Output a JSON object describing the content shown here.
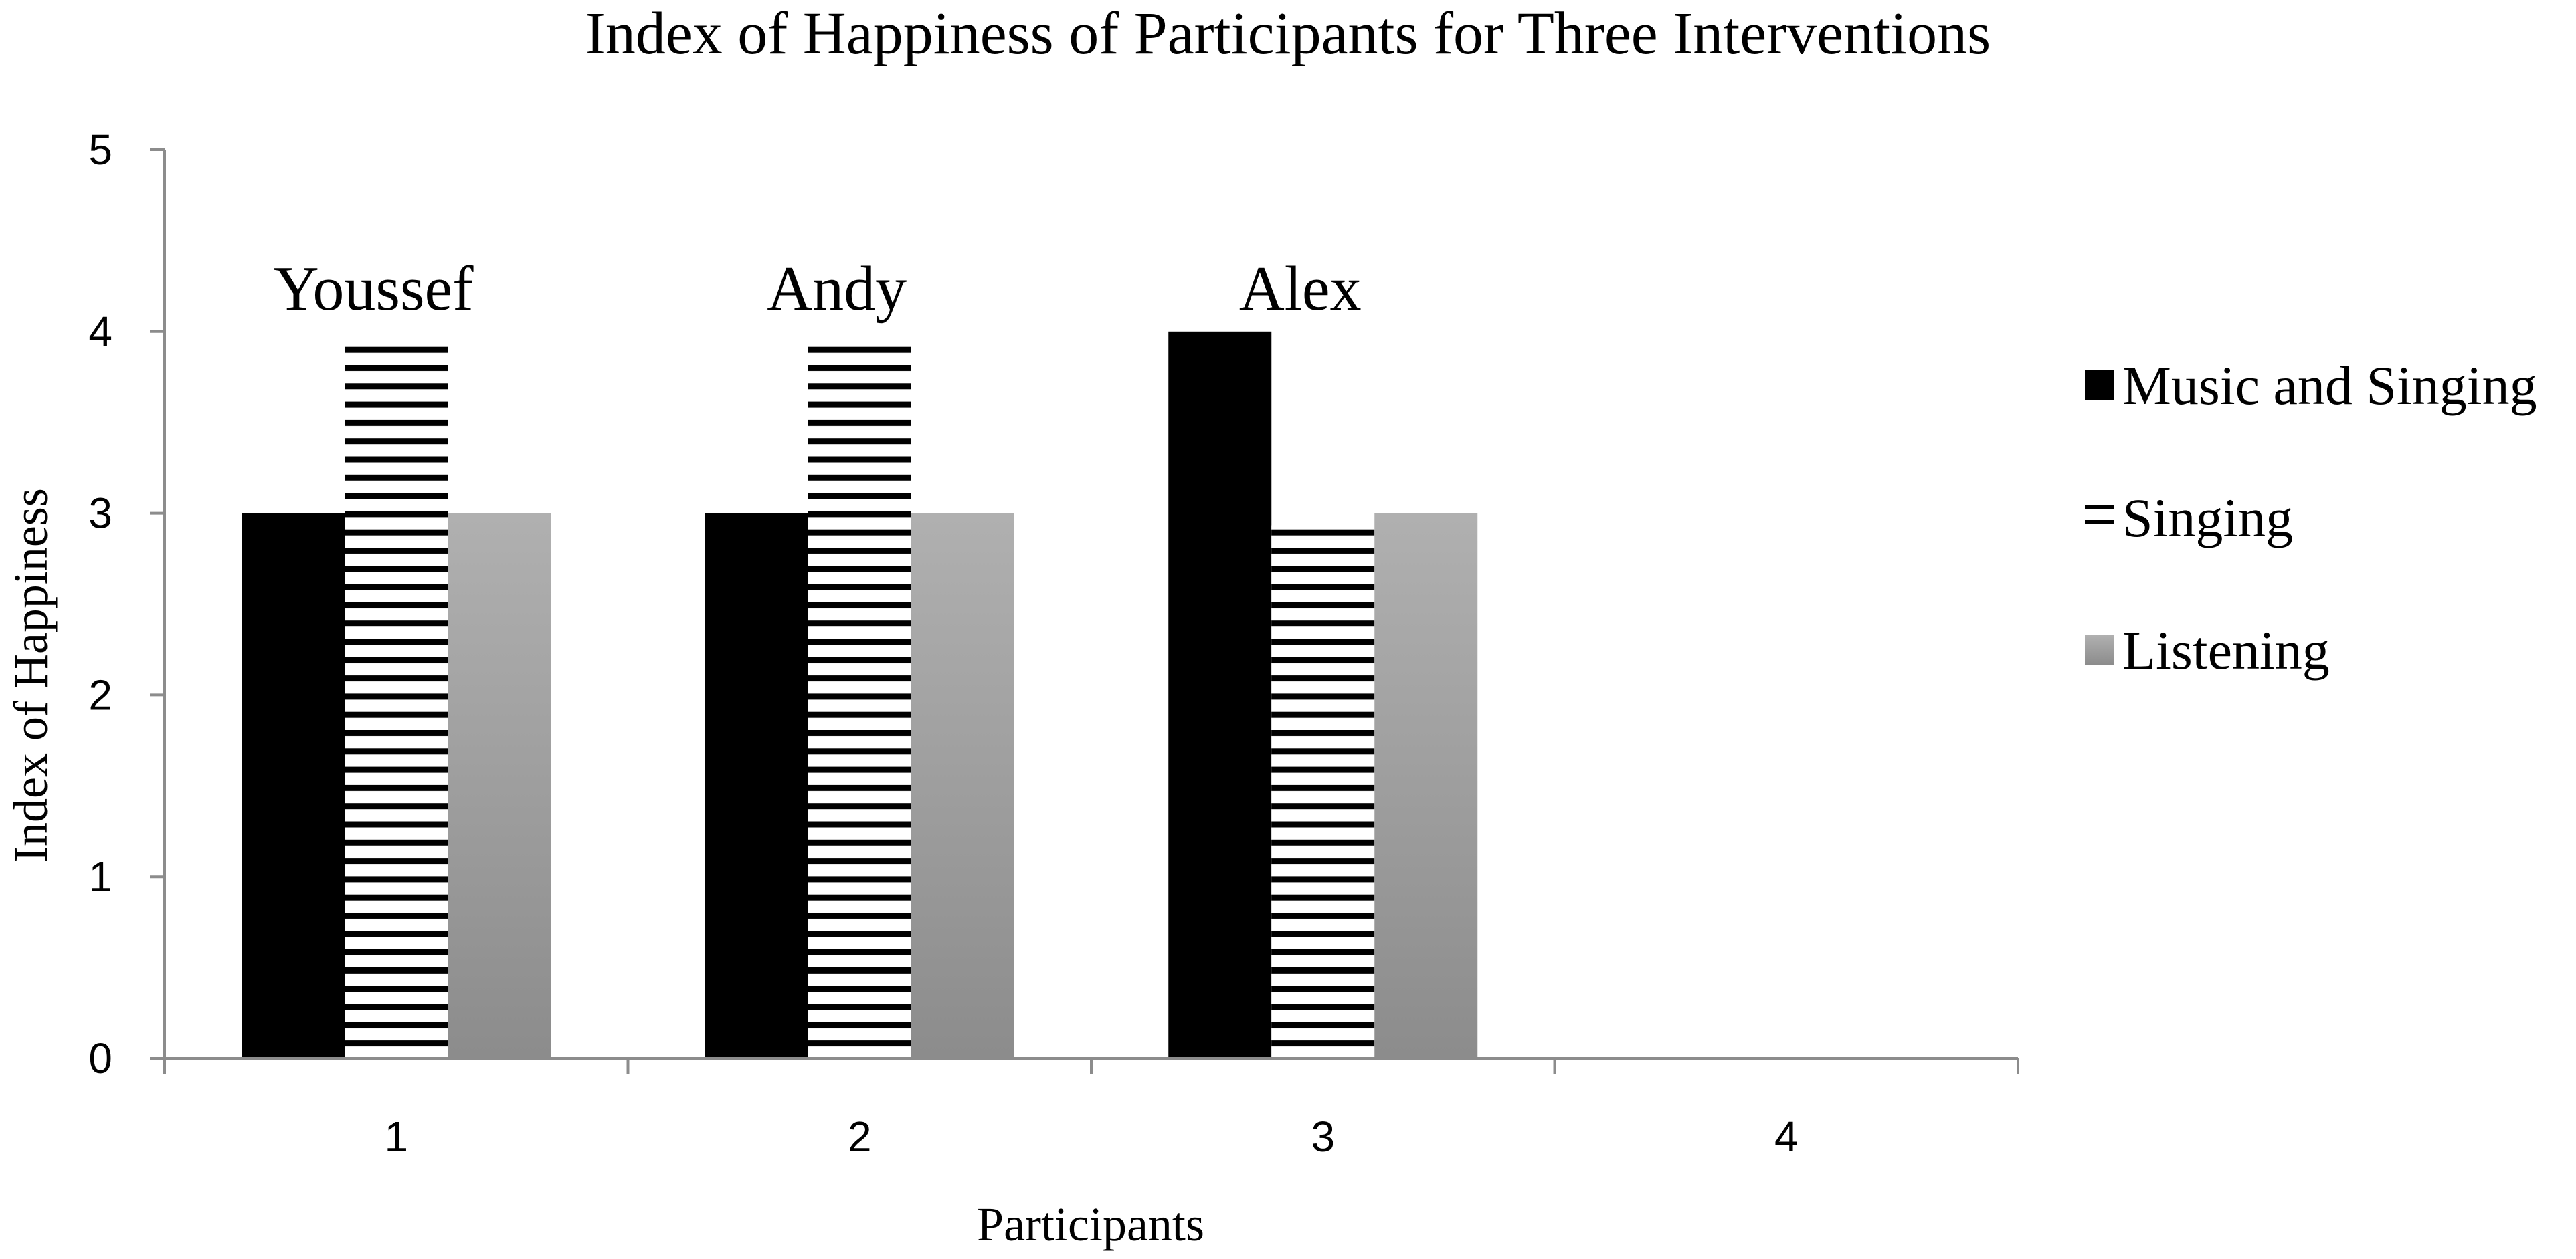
{
  "chart_data": {
    "type": "bar",
    "title": "Index of Happiness of Participants for Three Interventions",
    "xlabel": "Participants",
    "ylabel": "Index of Happiness",
    "categories": [
      "1",
      "2",
      "3",
      "4"
    ],
    "ylim": [
      0,
      5
    ],
    "yticks": [
      "0",
      "1",
      "2",
      "3",
      "4",
      "5"
    ],
    "grid": false,
    "legend_position": "right",
    "series": [
      {
        "name": "Music and Singing",
        "values": [
          3,
          3,
          4,
          null
        ],
        "color": "#000000",
        "pattern": "solid"
      },
      {
        "name": "Singing",
        "values": [
          4,
          4,
          3,
          null
        ],
        "color": "#000000",
        "pattern": "horizontal-stripes"
      },
      {
        "name": "Listening",
        "values": [
          3,
          3,
          3,
          null
        ],
        "color": "#a8a8a8",
        "pattern": "gray-gradient"
      }
    ],
    "annotations": [
      {
        "category": "1",
        "text": "Youssef"
      },
      {
        "category": "2",
        "text": "Andy"
      },
      {
        "category": "3",
        "text": "Alex"
      }
    ]
  }
}
